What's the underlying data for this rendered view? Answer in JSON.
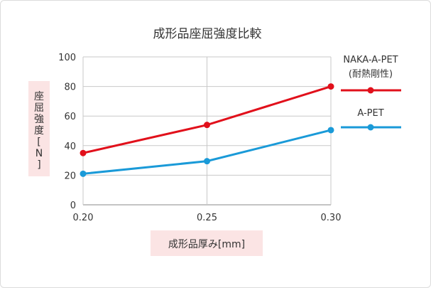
{
  "chart_data": {
    "type": "line",
    "title": "成形品座屈強度比較",
    "xlabel": "成形品厚み[mm]",
    "ylabel_chars": [
      "座",
      "屈",
      "強",
      "度",
      "[",
      "N",
      "]"
    ],
    "x": [
      0.2,
      0.25,
      0.3
    ],
    "x_tick_labels": [
      "0.20",
      "0.25",
      "0.30"
    ],
    "xlim": [
      0.2,
      0.3
    ],
    "ylim": [
      0,
      100
    ],
    "y_ticks": [
      0,
      20,
      40,
      60,
      80,
      100
    ],
    "y_tick_labels": [
      "0",
      "20",
      "40",
      "60",
      "80",
      "100"
    ],
    "grid": true,
    "legend_position": "right",
    "series": [
      {
        "name_lines": [
          "NAKA-A-PET",
          "(耐熱剛性)"
        ],
        "color": "#e1101b",
        "values": [
          35,
          54,
          80
        ]
      },
      {
        "name_lines": [
          "A-PET"
        ],
        "color": "#1a9ad8",
        "values": [
          21,
          29.5,
          50.5
        ]
      }
    ],
    "label_box_color": "#fbe4e4"
  }
}
